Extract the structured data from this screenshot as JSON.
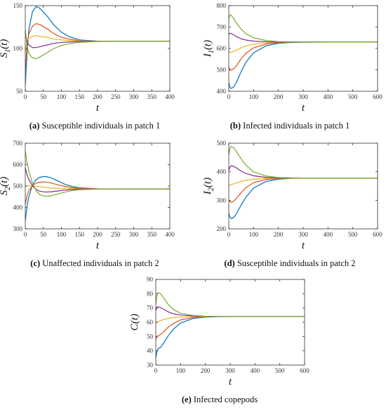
{
  "captions": [
    {
      "letter": "(a)",
      "text": "Susceptible individuals in patch 1"
    },
    {
      "letter": "(b)",
      "text": "Infected individuals in patch 1"
    },
    {
      "letter": "(c)",
      "text": "Unaffected individuals in patch 2"
    },
    {
      "letter": "(d)",
      "text": "Susceptible individuals in patch 2"
    },
    {
      "letter": "(e)",
      "text": "Infected copepods"
    }
  ],
  "colors": {
    "blue": "#0072BD",
    "red": "#D95319",
    "yellow": "#EDB120",
    "purple": "#7E2F8E",
    "green": "#77AC30",
    "axis": "#333333",
    "grid_frame": "#999999"
  },
  "chart_data": [
    {
      "type": "line",
      "panel": "a",
      "xlabel": "t",
      "ylabel": "S1(t)",
      "xlim": [
        0,
        400
      ],
      "ylim": [
        50,
        150
      ],
      "xticks": [
        0,
        50,
        100,
        150,
        200,
        250,
        300,
        350,
        400
      ],
      "yticks": [
        50,
        100,
        150
      ],
      "grid": false,
      "series": [
        {
          "color": "blue",
          "x": [
            0,
            5,
            10,
            20,
            30,
            40,
            60,
            80,
            100,
            120,
            150,
            200,
            250,
            300,
            400
          ],
          "y": [
            57,
            95,
            122,
            143,
            149,
            147,
            138,
            127,
            119,
            114,
            110,
            108.5,
            108.3,
            108.3,
            108.3
          ]
        },
        {
          "color": "red",
          "x": [
            0,
            5,
            10,
            20,
            30,
            40,
            60,
            80,
            100,
            120,
            150,
            200,
            250,
            300,
            400
          ],
          "y": [
            75,
            103,
            117,
            126,
            129,
            128,
            123,
            117,
            113,
            111,
            109,
            108.4,
            108.3,
            108.3,
            108.3
          ]
        },
        {
          "color": "yellow",
          "x": [
            0,
            5,
            10,
            20,
            30,
            40,
            60,
            80,
            100,
            120,
            150,
            200,
            250,
            300,
            400
          ],
          "y": [
            95,
            109,
            112,
            114,
            115,
            114,
            113,
            111,
            110,
            109.3,
            108.8,
            108.4,
            108.3,
            108.3,
            108.3
          ]
        },
        {
          "color": "purple",
          "x": [
            0,
            5,
            10,
            20,
            30,
            40,
            60,
            80,
            100,
            120,
            150,
            200,
            250,
            300,
            400
          ],
          "y": [
            117,
            109,
            104,
            101,
            101,
            102,
            104,
            106,
            107,
            107.6,
            108.1,
            108.3,
            108.3,
            108.3,
            108.3
          ]
        },
        {
          "color": "green",
          "x": [
            0,
            5,
            10,
            20,
            30,
            40,
            60,
            80,
            100,
            120,
            150,
            200,
            250,
            300,
            400
          ],
          "y": [
            122,
            103,
            94,
            89,
            88,
            90,
            95,
            100,
            103.5,
            105.5,
            107.2,
            108.1,
            108.3,
            108.3,
            108.3
          ]
        }
      ]
    },
    {
      "type": "line",
      "panel": "b",
      "xlabel": "t",
      "ylabel": "I1(t)",
      "xlim": [
        0,
        600
      ],
      "ylim": [
        400,
        800
      ],
      "xticks": [
        0,
        100,
        200,
        300,
        400,
        500,
        600
      ],
      "yticks": [
        400,
        500,
        600,
        700,
        800
      ],
      "grid": false,
      "series": [
        {
          "color": "blue",
          "x": [
            0,
            5,
            10,
            20,
            30,
            50,
            70,
            100,
            150,
            200,
            250,
            300,
            400,
            600
          ],
          "y": [
            440,
            418,
            413,
            420,
            440,
            492,
            537,
            580,
            612,
            624,
            628,
            629,
            630,
            630
          ]
        },
        {
          "color": "red",
          "x": [
            0,
            5,
            10,
            20,
            30,
            50,
            70,
            100,
            150,
            200,
            250,
            300,
            400,
            600
          ],
          "y": [
            512,
            500,
            499,
            506,
            518,
            552,
            578,
            603,
            620,
            627,
            629,
            630,
            630,
            630
          ]
        },
        {
          "color": "yellow",
          "x": [
            0,
            5,
            10,
            20,
            30,
            50,
            70,
            100,
            150,
            200,
            250,
            300,
            400,
            600
          ],
          "y": [
            585,
            582,
            583,
            587,
            592,
            603,
            612,
            620,
            626,
            629,
            630,
            630,
            630,
            630
          ]
        },
        {
          "color": "purple",
          "x": [
            0,
            5,
            10,
            20,
            30,
            50,
            70,
            100,
            150,
            200,
            250,
            300,
            400,
            600
          ],
          "y": [
            665,
            671,
            670,
            663,
            656,
            645,
            639,
            634,
            631,
            630,
            630,
            630,
            630,
            630
          ]
        },
        {
          "color": "green",
          "x": [
            0,
            5,
            10,
            20,
            30,
            50,
            70,
            100,
            150,
            200,
            250,
            300,
            400,
            600
          ],
          "y": [
            740,
            757,
            755,
            739,
            720,
            690,
            668,
            650,
            637,
            632,
            630.5,
            630,
            630,
            630
          ]
        }
      ]
    },
    {
      "type": "line",
      "panel": "c",
      "xlabel": "t",
      "ylabel": "S2(t)",
      "xlim": [
        0,
        400
      ],
      "ylim": [
        300,
        700
      ],
      "xticks": [
        0,
        50,
        100,
        150,
        200,
        250,
        300,
        350,
        400
      ],
      "yticks": [
        300,
        400,
        500,
        600,
        700
      ],
      "grid": false,
      "series": [
        {
          "color": "blue",
          "x": [
            0,
            5,
            10,
            20,
            30,
            40,
            55,
            70,
            90,
            110,
            130,
            150,
            200,
            250,
            300,
            400
          ],
          "y": [
            338,
            405,
            450,
            505,
            530,
            541,
            545,
            539,
            524,
            508,
            498,
            492,
            487,
            486,
            486,
            486
          ]
        },
        {
          "color": "red",
          "x": [
            0,
            5,
            10,
            20,
            30,
            40,
            55,
            70,
            90,
            110,
            130,
            150,
            200,
            250,
            300,
            400
          ],
          "y": [
            415,
            455,
            478,
            502,
            513,
            518,
            519,
            515,
            506,
            498,
            492,
            489,
            486.5,
            486,
            486,
            486
          ]
        },
        {
          "color": "yellow",
          "x": [
            0,
            5,
            10,
            20,
            30,
            40,
            55,
            70,
            90,
            110,
            130,
            150,
            200,
            250,
            300,
            400
          ],
          "y": [
            500,
            501,
            501,
            500,
            499,
            497,
            494,
            491,
            489,
            487.5,
            486.8,
            486.4,
            486,
            486,
            486,
            486
          ]
        },
        {
          "color": "purple",
          "x": [
            0,
            5,
            10,
            20,
            30,
            40,
            55,
            70,
            90,
            110,
            130,
            150,
            200,
            250,
            300,
            400
          ],
          "y": [
            585,
            553,
            530,
            500,
            484,
            476,
            472,
            473,
            477,
            481,
            484,
            485,
            486,
            486,
            486,
            486
          ]
        },
        {
          "color": "green",
          "x": [
            0,
            5,
            10,
            20,
            30,
            40,
            55,
            70,
            90,
            110,
            130,
            150,
            200,
            250,
            300,
            400
          ],
          "y": [
            665,
            610,
            570,
            512,
            478,
            460,
            452,
            454,
            463,
            472,
            479,
            483,
            485.5,
            486,
            486,
            486
          ]
        }
      ]
    },
    {
      "type": "line",
      "panel": "d",
      "xlabel": "t",
      "ylabel": "I2(t)",
      "xlim": [
        0,
        600
      ],
      "ylim": [
        200,
        500
      ],
      "xticks": [
        0,
        100,
        200,
        300,
        400,
        500,
        600
      ],
      "yticks": [
        200,
        300,
        400,
        500
      ],
      "grid": false,
      "series": [
        {
          "color": "blue",
          "x": [
            0,
            5,
            10,
            20,
            30,
            50,
            70,
            100,
            150,
            200,
            250,
            300,
            400,
            600
          ],
          "y": [
            255,
            240,
            236,
            240,
            252,
            284,
            312,
            343,
            366,
            374,
            377,
            378,
            378,
            378
          ]
        },
        {
          "color": "red",
          "x": [
            0,
            5,
            10,
            20,
            30,
            50,
            70,
            100,
            150,
            200,
            250,
            300,
            400,
            600
          ],
          "y": [
            302,
            295,
            293,
            297,
            306,
            327,
            345,
            362,
            373,
            376.5,
            377.6,
            378,
            378,
            378
          ]
        },
        {
          "color": "yellow",
          "x": [
            0,
            5,
            10,
            20,
            30,
            50,
            70,
            100,
            150,
            200,
            250,
            300,
            400,
            600
          ],
          "y": [
            352,
            354,
            355,
            358,
            361,
            366,
            370,
            374,
            376.8,
            377.7,
            378,
            378,
            378,
            378
          ]
        },
        {
          "color": "purple",
          "x": [
            0,
            5,
            10,
            20,
            30,
            50,
            70,
            100,
            150,
            200,
            250,
            300,
            400,
            600
          ],
          "y": [
            405,
            418,
            421,
            419,
            414,
            402,
            394,
            386,
            380.5,
            378.8,
            378.2,
            378,
            378,
            378
          ]
        },
        {
          "color": "green",
          "x": [
            0,
            5,
            10,
            20,
            30,
            50,
            70,
            100,
            150,
            200,
            250,
            300,
            400,
            600
          ],
          "y": [
            460,
            484,
            489,
            484,
            472,
            445,
            422,
            400,
            385,
            380,
            378.5,
            378,
            378,
            378
          ]
        }
      ]
    },
    {
      "type": "line",
      "panel": "e",
      "xlabel": "t",
      "ylabel": "C(t)",
      "xlim": [
        0,
        600
      ],
      "ylim": [
        30,
        90
      ],
      "xticks": [
        0,
        100,
        200,
        300,
        400,
        500,
        600
      ],
      "yticks": [
        30,
        40,
        50,
        60,
        70,
        80,
        90
      ],
      "grid": false,
      "series": [
        {
          "color": "blue",
          "x": [
            0,
            5,
            10,
            20,
            30,
            50,
            70,
            100,
            150,
            200,
            250,
            300,
            400,
            600
          ],
          "y": [
            35,
            40,
            41.5,
            42.5,
            45,
            50.5,
            55,
            59.5,
            62.6,
            63.6,
            63.9,
            64,
            64,
            64
          ]
        },
        {
          "color": "red",
          "x": [
            0,
            5,
            10,
            20,
            30,
            50,
            70,
            100,
            150,
            200,
            250,
            300,
            400,
            600
          ],
          "y": [
            48,
            50,
            50.5,
            51.5,
            53,
            56.5,
            59,
            61.6,
            63.3,
            63.8,
            64,
            64,
            64,
            64
          ]
        },
        {
          "color": "yellow",
          "x": [
            0,
            5,
            10,
            20,
            30,
            50,
            70,
            100,
            150,
            200,
            250,
            300,
            400,
            600
          ],
          "y": [
            59,
            60,
            60.5,
            61.2,
            61.8,
            62.7,
            63.2,
            63.6,
            63.9,
            64,
            64,
            64,
            64,
            64
          ]
        },
        {
          "color": "purple",
          "x": [
            0,
            5,
            10,
            20,
            30,
            50,
            70,
            100,
            150,
            200,
            250,
            300,
            400,
            600
          ],
          "y": [
            68,
            70.5,
            70.8,
            70.2,
            69.2,
            67.3,
            66,
            65,
            64.4,
            64.1,
            64,
            64,
            64,
            64
          ]
        },
        {
          "color": "green",
          "x": [
            0,
            5,
            10,
            20,
            30,
            50,
            70,
            100,
            150,
            200,
            250,
            300,
            400,
            600
          ],
          "y": [
            73,
            79.5,
            80.8,
            79.8,
            77.5,
            72.5,
            69,
            66.3,
            64.8,
            64.2,
            64.05,
            64,
            64,
            64
          ]
        }
      ]
    }
  ]
}
